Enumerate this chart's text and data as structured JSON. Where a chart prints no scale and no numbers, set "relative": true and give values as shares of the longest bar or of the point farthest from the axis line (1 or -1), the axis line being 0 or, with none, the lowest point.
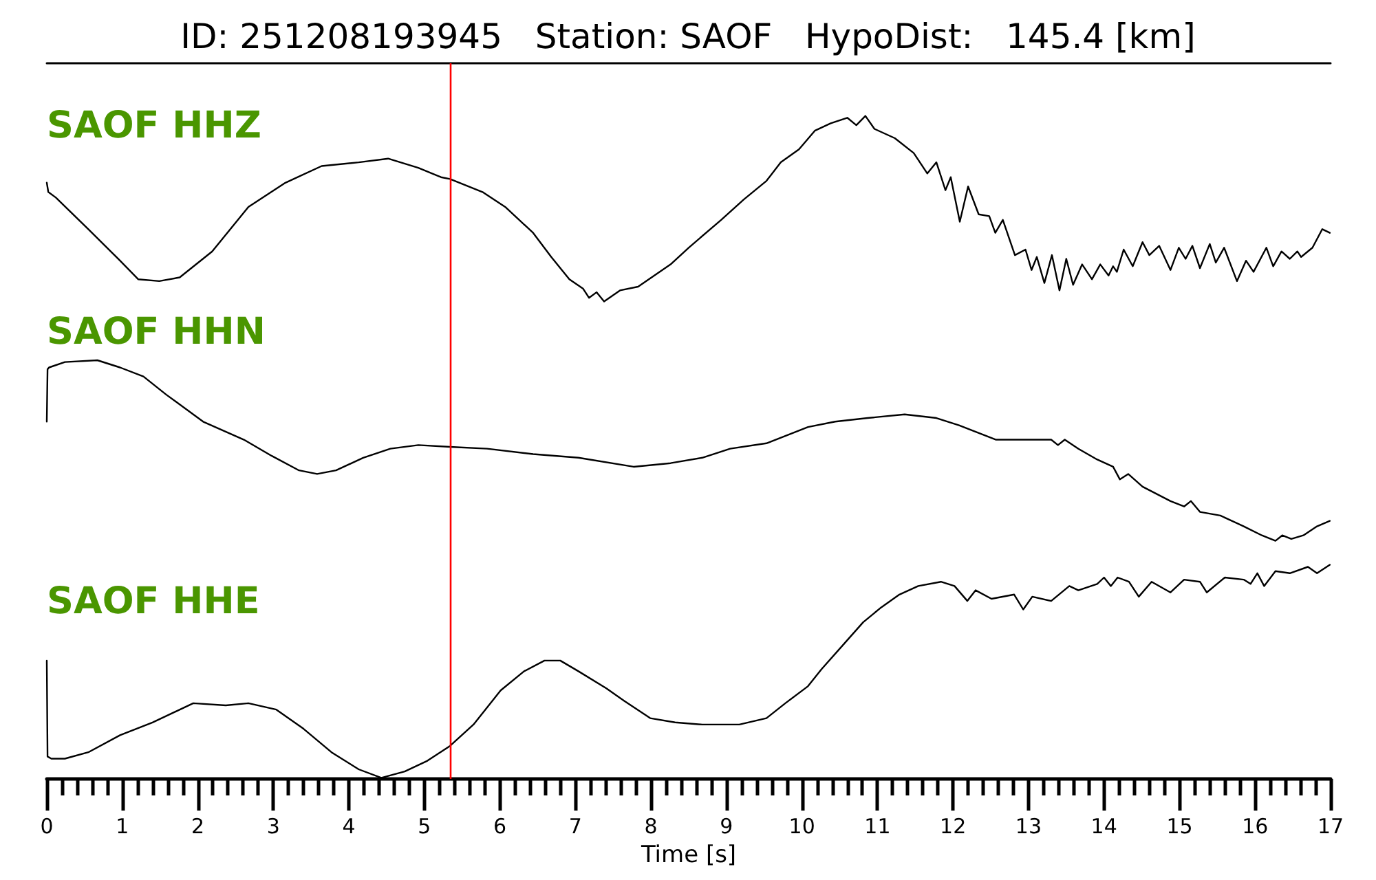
{
  "chart_data": [
    {
      "type": "line",
      "title": "ID: 251208193945   Station: SAOF   HypoDist:   145.4 [km]",
      "relative": true,
      "xlim": [
        0,
        17
      ],
      "series": [
        {
          "name": "SAOF HHZ",
          "color": "#000000",
          "x": [
            0,
            0.02,
            0.12,
            0.55,
            0.97,
            1.21,
            1.49,
            1.76,
            2.19,
            2.67,
            3.16,
            3.64,
            4.13,
            4.52,
            4.92,
            5.22,
            5.34,
            5.77,
            6.07,
            6.44,
            6.68,
            6.92,
            7.1,
            7.18,
            7.28,
            7.38,
            7.59,
            7.83,
            8.26,
            8.5,
            8.93,
            9.23,
            9.53,
            9.72,
            9.96,
            10.17,
            10.38,
            10.6,
            10.72,
            10.84,
            10.96,
            11.23,
            11.48,
            11.66,
            11.78,
            11.9,
            11.97,
            12.09,
            12.2,
            12.34,
            12.48,
            12.56,
            12.66,
            12.82,
            12.96,
            13.04,
            13.11,
            13.21,
            13.31,
            13.41,
            13.5,
            13.59,
            13.71,
            13.84,
            13.95,
            14.06,
            14.12,
            14.17,
            14.26,
            14.38,
            14.51,
            14.6,
            14.73,
            14.88,
            14.99,
            15.08,
            15.17,
            15.27,
            15.4,
            15.48,
            15.59,
            15.76,
            15.88,
            15.98,
            16.15,
            16.24,
            16.35,
            16.46,
            16.56,
            16.61,
            16.76,
            16.89,
            16.99
          ],
          "values": [
            0.64,
            0.59,
            0.56,
            0.39,
            0.22,
            0.12,
            0.11,
            0.13,
            0.27,
            0.51,
            0.64,
            0.73,
            0.75,
            0.77,
            0.72,
            0.67,
            0.66,
            0.59,
            0.51,
            0.37,
            0.24,
            0.12,
            0.07,
            0.02,
            0.05,
            0,
            0.06,
            0.08,
            0.2,
            0.29,
            0.44,
            0.55,
            0.65,
            0.75,
            0.82,
            0.92,
            0.96,
            0.99,
            0.95,
            1,
            0.93,
            0.88,
            0.8,
            0.69,
            0.75,
            0.6,
            0.67,
            0.43,
            0.62,
            0.47,
            0.46,
            0.37,
            0.44,
            0.25,
            0.28,
            0.17,
            0.24,
            0.1,
            0.25,
            0.06,
            0.23,
            0.09,
            0.2,
            0.12,
            0.2,
            0.14,
            0.19,
            0.16,
            0.28,
            0.19,
            0.32,
            0.25,
            0.3,
            0.17,
            0.29,
            0.23,
            0.3,
            0.18,
            0.31,
            0.21,
            0.29,
            0.11,
            0.22,
            0.16,
            0.29,
            0.19,
            0.27,
            0.23,
            0.27,
            0.24,
            0.29,
            0.39,
            0.37
          ]
        }
      ],
      "ref_lines": [
        {
          "axis": "x",
          "value": 5.35,
          "color": "#ff0000"
        }
      ]
    },
    {
      "type": "line",
      "relative": true,
      "xlim": [
        0,
        17
      ],
      "series": [
        {
          "name": "SAOF HHN",
          "color": "#000000",
          "x": [
            0,
            0.01,
            0.03,
            0.24,
            0.67,
            0.97,
            1.28,
            1.58,
            2.07,
            2.61,
            2.98,
            3.34,
            3.58,
            3.83,
            4.19,
            4.55,
            4.92,
            5.34,
            5.83,
            6.44,
            7.04,
            7.77,
            8.26,
            8.68,
            9.05,
            9.53,
            10.08,
            10.44,
            10.87,
            11.36,
            11.78,
            12.08,
            12.57,
            12.93,
            13.3,
            13.39,
            13.48,
            13.66,
            13.91,
            14.12,
            14.21,
            14.32,
            14.51,
            14.88,
            15.06,
            15.15,
            15.27,
            15.54,
            15.85,
            16.09,
            16.27,
            16.36,
            16.48,
            16.64,
            16.82,
            16.99
          ],
          "values": [
            0.66,
            0.95,
            0.96,
            0.99,
            1,
            0.96,
            0.91,
            0.81,
            0.66,
            0.56,
            0.47,
            0.39,
            0.37,
            0.39,
            0.46,
            0.51,
            0.53,
            0.52,
            0.51,
            0.48,
            0.46,
            0.41,
            0.43,
            0.46,
            0.51,
            0.54,
            0.63,
            0.66,
            0.68,
            0.7,
            0.68,
            0.64,
            0.56,
            0.56,
            0.56,
            0.53,
            0.56,
            0.51,
            0.45,
            0.41,
            0.34,
            0.37,
            0.3,
            0.22,
            0.19,
            0.22,
            0.16,
            0.14,
            0.08,
            0.03,
            0,
            0.03,
            0.01,
            0.03,
            0.08,
            0.11
          ]
        }
      ],
      "ref_lines": [
        {
          "axis": "x",
          "value": 5.35,
          "color": "#ff0000"
        }
      ]
    },
    {
      "type": "line",
      "xlabel": "Time [s]",
      "relative": true,
      "xlim": [
        0,
        17
      ],
      "xticks": [
        0,
        {
          "value": 0.2,
          "label": null
        },
        {
          "value": 0.4,
          "label": null
        },
        {
          "value": 0.6,
          "label": null
        },
        {
          "value": 0.8,
          "label": null
        },
        1,
        {
          "value": 1.2,
          "label": null
        },
        {
          "value": 1.4,
          "label": null
        },
        {
          "value": 1.6,
          "label": null
        },
        {
          "value": 1.8,
          "label": null
        },
        2,
        {
          "value": 2.2,
          "label": null
        },
        {
          "value": 2.4,
          "label": null
        },
        {
          "value": 2.6,
          "label": null
        },
        {
          "value": 2.8,
          "label": null
        },
        3,
        {
          "value": 3.2,
          "label": null
        },
        {
          "value": 3.4,
          "label": null
        },
        {
          "value": 3.6,
          "label": null
        },
        {
          "value": 3.8,
          "label": null
        },
        4,
        {
          "value": 4.2,
          "label": null
        },
        {
          "value": 4.4,
          "label": null
        },
        {
          "value": 4.6,
          "label": null
        },
        {
          "value": 4.8,
          "label": null
        },
        5,
        {
          "value": 5.2,
          "label": null
        },
        {
          "value": 5.4,
          "label": null
        },
        {
          "value": 5.6,
          "label": null
        },
        {
          "value": 5.8,
          "label": null
        },
        6,
        {
          "value": 6.2,
          "label": null
        },
        {
          "value": 6.4,
          "label": null
        },
        {
          "value": 6.6,
          "label": null
        },
        {
          "value": 6.8,
          "label": null
        },
        7,
        {
          "value": 7.2,
          "label": null
        },
        {
          "value": 7.4,
          "label": null
        },
        {
          "value": 7.6,
          "label": null
        },
        {
          "value": 7.8,
          "label": null
        },
        8,
        {
          "value": 8.2,
          "label": null
        },
        {
          "value": 8.4,
          "label": null
        },
        {
          "value": 8.6,
          "label": null
        },
        {
          "value": 8.8,
          "label": null
        },
        9,
        {
          "value": 9.2,
          "label": null
        },
        {
          "value": 9.4,
          "label": null
        },
        {
          "value": 9.6,
          "label": null
        },
        {
          "value": 9.8,
          "label": null
        },
        10,
        {
          "value": 10.2,
          "label": null
        },
        {
          "value": 10.4,
          "label": null
        },
        {
          "value": 10.6,
          "label": null
        },
        {
          "value": 10.8,
          "label": null
        },
        11,
        {
          "value": 11.2,
          "label": null
        },
        {
          "value": 11.4,
          "label": null
        },
        {
          "value": 11.6,
          "label": null
        },
        {
          "value": 11.8,
          "label": null
        },
        12,
        {
          "value": 12.2,
          "label": null
        },
        {
          "value": 12.4,
          "label": null
        },
        {
          "value": 12.6,
          "label": null
        },
        {
          "value": 12.8,
          "label": null
        },
        13,
        {
          "value": 13.2,
          "label": null
        },
        {
          "value": 13.4,
          "label": null
        },
        {
          "value": 13.6,
          "label": null
        },
        {
          "value": 13.8,
          "label": null
        },
        14,
        {
          "value": 14.2,
          "label": null
        },
        {
          "value": 14.4,
          "label": null
        },
        {
          "value": 14.6,
          "label": null
        },
        {
          "value": 14.8,
          "label": null
        },
        15,
        {
          "value": 15.2,
          "label": null
        },
        {
          "value": 15.4,
          "label": null
        },
        {
          "value": 15.6,
          "label": null
        },
        {
          "value": 15.8,
          "label": null
        },
        16,
        {
          "value": 16.2,
          "label": null
        },
        {
          "value": 16.4,
          "label": null
        },
        {
          "value": 16.6,
          "label": null
        },
        {
          "value": 16.8,
          "label": null
        },
        17
      ],
      "series": [
        {
          "name": "SAOF HHE",
          "color": "#000000",
          "x": [
            0,
            0.01,
            0.06,
            0.24,
            0.55,
            0.97,
            1.4,
            1.94,
            2.37,
            2.67,
            3.04,
            3.4,
            3.77,
            4.13,
            4.43,
            4.74,
            5.04,
            5.34,
            5.65,
            6.01,
            6.32,
            6.59,
            6.8,
            7.04,
            7.41,
            7.65,
            7.99,
            8.32,
            8.68,
            9.17,
            9.53,
            9.78,
            10.08,
            10.26,
            10.56,
            10.81,
            11.05,
            11.29,
            11.54,
            11.84,
            12.02,
            12.19,
            12.3,
            12.51,
            12.81,
            12.93,
            13.05,
            13.3,
            13.54,
            13.66,
            13.91,
            14.0,
            14.09,
            14.18,
            14.33,
            14.46,
            14.63,
            14.88,
            15.06,
            15.27,
            15.36,
            15.6,
            15.85,
            15.94,
            16.03,
            16.12,
            16.27,
            16.46,
            16.7,
            16.82,
            16.99
          ],
          "values": [
            0.55,
            0.1,
            0.09,
            0.09,
            0.12,
            0.2,
            0.26,
            0.35,
            0.34,
            0.35,
            0.32,
            0.23,
            0.12,
            0.04,
            0,
            0.03,
            0.08,
            0.15,
            0.25,
            0.41,
            0.5,
            0.55,
            0.55,
            0.5,
            0.42,
            0.36,
            0.28,
            0.26,
            0.25,
            0.25,
            0.28,
            0.35,
            0.43,
            0.51,
            0.63,
            0.73,
            0.8,
            0.86,
            0.9,
            0.92,
            0.9,
            0.83,
            0.88,
            0.84,
            0.86,
            0.79,
            0.85,
            0.83,
            0.9,
            0.88,
            0.91,
            0.94,
            0.9,
            0.94,
            0.92,
            0.85,
            0.92,
            0.87,
            0.93,
            0.92,
            0.87,
            0.94,
            0.93,
            0.91,
            0.96,
            0.9,
            0.97,
            0.96,
            0.99,
            0.96,
            1
          ]
        }
      ],
      "ref_lines": [
        {
          "axis": "x",
          "value": 5.35,
          "color": "#ff0000"
        }
      ]
    }
  ]
}
